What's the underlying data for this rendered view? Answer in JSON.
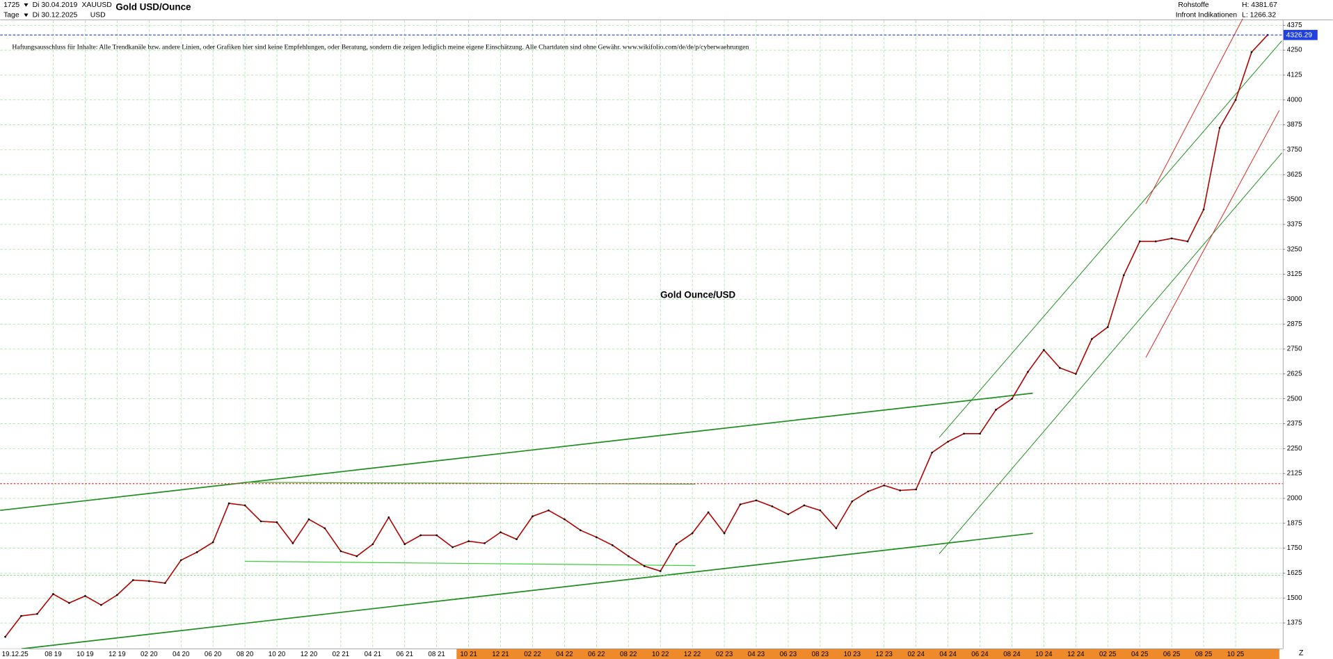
{
  "header": {
    "bars": "1725",
    "from": "Di 30.04.2019",
    "symbol": "XAUUSD",
    "currency": "USD",
    "title": "Gold USD/Ounce",
    "period": "Tage",
    "to": "Di 30.12.2025",
    "group": "Rohstoffe",
    "high": "H: 4381.67",
    "source": "Infront Indikationen",
    "low": "L: 1266.32",
    "cursor_date": "19.12.25",
    "corner": "Z",
    "disclaimer": "Haftungsausschluss für Inhalte: Alle Trendkanäle bzw. andere Linien, oder Grafiken hier sind keine Empfehlungen, oder Beratung, sondern die zeigen lediglich meine eigene Einschätzung. Alle Chartdaten sind ohne Gewähr. www.wikifolio.com/de/de/p/cyberwaehrungen"
  },
  "chart_data": {
    "type": "line",
    "title": "Gold Ounce/USD",
    "grid": true,
    "categories": [
      null,
      null,
      null,
      "08 19",
      null,
      "10 19",
      null,
      "12 19",
      null,
      "02 20",
      null,
      "04 20",
      null,
      "06 20",
      null,
      "08 20",
      null,
      "10 20",
      null,
      "12 20",
      null,
      "02 21",
      null,
      "04 21",
      null,
      "06 21",
      null,
      "08 21",
      null,
      "10 21",
      null,
      "12 21",
      null,
      "02 22",
      null,
      "04 22",
      null,
      "06 22",
      null,
      "08 22",
      null,
      "10 22",
      null,
      "12 22",
      null,
      "02 23",
      null,
      "04 23",
      null,
      "06 23",
      null,
      "08 23",
      null,
      "10 23",
      null,
      "12 23",
      null,
      "02 24",
      null,
      "04 24",
      null,
      "06 24",
      null,
      "08 24",
      null,
      "10 24",
      null,
      "12 24",
      null,
      "02 25",
      null,
      "04 25",
      null,
      "06 25",
      null,
      "08 25",
      null,
      "10 25",
      null,
      null
    ],
    "series": [
      {
        "name": "XAUUSD",
        "color": "#b00000",
        "values": [
          1305,
          1410,
          1420,
          1520,
          1475,
          1510,
          1465,
          1515,
          1590,
          1585,
          1575,
          1690,
          1730,
          1780,
          1975,
          1965,
          1885,
          1880,
          1775,
          1895,
          1850,
          1735,
          1710,
          1770,
          1905,
          1770,
          1815,
          1815,
          1755,
          1785,
          1775,
          1830,
          1795,
          1910,
          1940,
          1895,
          1840,
          1805,
          1765,
          1710,
          1660,
          1635,
          1770,
          1825,
          1930,
          1825,
          1970,
          1990,
          1960,
          1920,
          1965,
          1940,
          1850,
          1985,
          2035,
          2065,
          2040,
          2045,
          2230,
          2285,
          2325,
          2325,
          2445,
          2500,
          2635,
          2745,
          2655,
          2625,
          2800,
          2860,
          3120,
          3290,
          3290,
          3305,
          3290,
          3450,
          3860,
          4000,
          4240,
          4326
        ]
      }
    ],
    "last_price": 4326.29,
    "ylim": [
      1245,
      4425
    ],
    "yticks": [
      1375,
      1500,
      1625,
      1750,
      1875,
      2000,
      2125,
      2250,
      2375,
      2500,
      2625,
      2750,
      2875,
      3000,
      3125,
      3250,
      3375,
      3500,
      3625,
      3750,
      3875,
      4000,
      4125,
      4250,
      4375
    ]
  }
}
